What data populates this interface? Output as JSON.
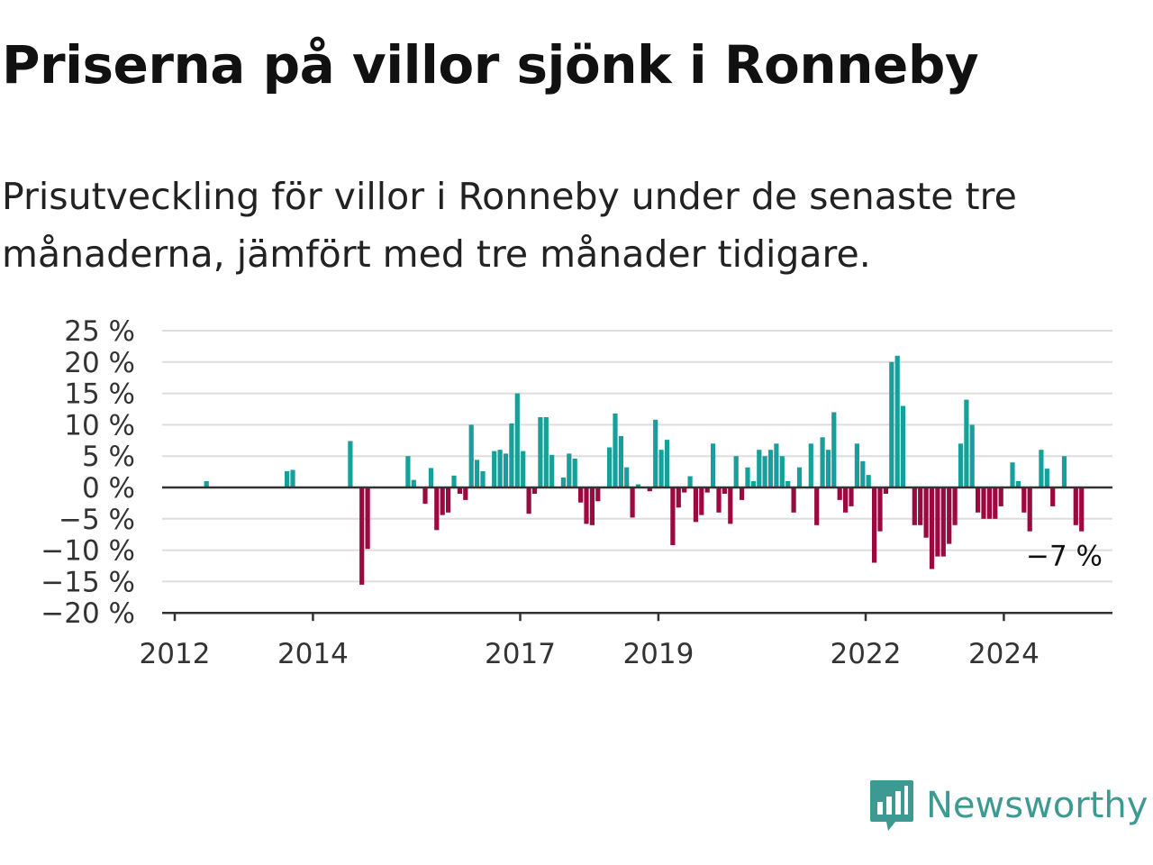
{
  "title": "Priserna på villor sjönk i Ronneby",
  "subtitle": "Prisutveckling för villor i Ronneby under de senaste tre månaderna, jämfört med tre månader tidigare.",
  "brand": {
    "name": "Newsworthy"
  },
  "colors": {
    "positive": "#17a09b",
    "negative": "#9b0940",
    "grid": "#dddddd",
    "axis": "#333333",
    "text": "#333333",
    "brand": "#3d9a93"
  },
  "chart_data": {
    "type": "bar",
    "title": "",
    "xlabel": "",
    "ylabel": "",
    "ylim": [
      -20,
      25
    ],
    "yticks": [
      25,
      20,
      15,
      10,
      5,
      0,
      -5,
      -10,
      -15,
      -20
    ],
    "y_tick_labels": [
      "25 %",
      "20 %",
      "15 %",
      "10 %",
      "5 %",
      "0 %",
      "−5 %",
      "−10 %",
      "−15 %",
      "−20 %"
    ],
    "x_tick_labels": [
      {
        "year": 2012,
        "label": "2012"
      },
      {
        "year": 2014,
        "label": "2014"
      },
      {
        "year": 2017,
        "label": "2017"
      },
      {
        "year": 2019,
        "label": "2019"
      },
      {
        "year": 2022,
        "label": "2022"
      },
      {
        "year": 2024,
        "label": "2024"
      }
    ],
    "annotation": {
      "date": "2025-02",
      "value": -7,
      "text": "−7 %"
    },
    "series": [
      {
        "values": [
          {
            "date": "2012-06",
            "value": 1
          },
          {
            "date": "2013-08",
            "value": 2.6
          },
          {
            "date": "2013-09",
            "value": 2.8
          },
          {
            "date": "2014-07",
            "value": 7.4
          },
          {
            "date": "2014-09",
            "value": -15.5
          },
          {
            "date": "2014-10",
            "value": -9.8
          },
          {
            "date": "2015-05",
            "value": 5
          },
          {
            "date": "2015-06",
            "value": 1.2
          },
          {
            "date": "2015-08",
            "value": -2.6
          },
          {
            "date": "2015-09",
            "value": 3.1
          },
          {
            "date": "2015-10",
            "value": -6.8
          },
          {
            "date": "2015-11",
            "value": -4.4
          },
          {
            "date": "2015-12",
            "value": -4
          },
          {
            "date": "2016-01",
            "value": 1.9
          },
          {
            "date": "2016-02",
            "value": -1
          },
          {
            "date": "2016-03",
            "value": -2
          },
          {
            "date": "2016-04",
            "value": 10
          },
          {
            "date": "2016-05",
            "value": 4.4
          },
          {
            "date": "2016-06",
            "value": 2.6
          },
          {
            "date": "2016-08",
            "value": 5.8
          },
          {
            "date": "2016-09",
            "value": 6
          },
          {
            "date": "2016-10",
            "value": 5.4
          },
          {
            "date": "2016-11",
            "value": 10.2
          },
          {
            "date": "2016-12",
            "value": 15
          },
          {
            "date": "2017-01",
            "value": 5.8
          },
          {
            "date": "2017-02",
            "value": -4.2
          },
          {
            "date": "2017-03",
            "value": -1
          },
          {
            "date": "2017-04",
            "value": 11.2
          },
          {
            "date": "2017-05",
            "value": 11.2
          },
          {
            "date": "2017-06",
            "value": 5.2
          },
          {
            "date": "2017-08",
            "value": 1.6
          },
          {
            "date": "2017-09",
            "value": 5.4
          },
          {
            "date": "2017-10",
            "value": 4.6
          },
          {
            "date": "2017-11",
            "value": -2.4
          },
          {
            "date": "2017-12",
            "value": -5.8
          },
          {
            "date": "2018-01",
            "value": -6
          },
          {
            "date": "2018-02",
            "value": -2.2
          },
          {
            "date": "2018-04",
            "value": 6.4
          },
          {
            "date": "2018-05",
            "value": 11.8
          },
          {
            "date": "2018-06",
            "value": 8.2
          },
          {
            "date": "2018-07",
            "value": 3.2
          },
          {
            "date": "2018-08",
            "value": -4.8
          },
          {
            "date": "2018-09",
            "value": 0.5
          },
          {
            "date": "2018-11",
            "value": -0.6
          },
          {
            "date": "2018-12",
            "value": 10.8
          },
          {
            "date": "2019-01",
            "value": 6
          },
          {
            "date": "2019-02",
            "value": 7.6
          },
          {
            "date": "2019-03",
            "value": -9.2
          },
          {
            "date": "2019-04",
            "value": -3.2
          },
          {
            "date": "2019-05",
            "value": -0.8
          },
          {
            "date": "2019-06",
            "value": 1.8
          },
          {
            "date": "2019-07",
            "value": -5.5
          },
          {
            "date": "2019-08",
            "value": -4.4
          },
          {
            "date": "2019-09",
            "value": -0.8
          },
          {
            "date": "2019-10",
            "value": 7
          },
          {
            "date": "2019-11",
            "value": -4
          },
          {
            "date": "2019-12",
            "value": -1
          },
          {
            "date": "2020-01",
            "value": -5.8
          },
          {
            "date": "2020-02",
            "value": 5
          },
          {
            "date": "2020-03",
            "value": -2
          },
          {
            "date": "2020-04",
            "value": 3.2
          },
          {
            "date": "2020-05",
            "value": 1
          },
          {
            "date": "2020-06",
            "value": 6
          },
          {
            "date": "2020-07",
            "value": 5
          },
          {
            "date": "2020-08",
            "value": 6
          },
          {
            "date": "2020-09",
            "value": 7
          },
          {
            "date": "2020-10",
            "value": 5
          },
          {
            "date": "2020-11",
            "value": 1
          },
          {
            "date": "2020-12",
            "value": -4
          },
          {
            "date": "2021-01",
            "value": 3.2
          },
          {
            "date": "2021-03",
            "value": 7
          },
          {
            "date": "2021-04",
            "value": -6
          },
          {
            "date": "2021-05",
            "value": 8
          },
          {
            "date": "2021-06",
            "value": 6
          },
          {
            "date": "2021-07",
            "value": 12
          },
          {
            "date": "2021-08",
            "value": -2
          },
          {
            "date": "2021-09",
            "value": -4
          },
          {
            "date": "2021-10",
            "value": -3
          },
          {
            "date": "2021-11",
            "value": 7
          },
          {
            "date": "2021-12",
            "value": 4.2
          },
          {
            "date": "2022-01",
            "value": 2
          },
          {
            "date": "2022-02",
            "value": -12
          },
          {
            "date": "2022-03",
            "value": -7
          },
          {
            "date": "2022-04",
            "value": -1
          },
          {
            "date": "2022-05",
            "value": 20
          },
          {
            "date": "2022-06",
            "value": 21
          },
          {
            "date": "2022-07",
            "value": 13
          },
          {
            "date": "2022-09",
            "value": -6
          },
          {
            "date": "2022-10",
            "value": -6
          },
          {
            "date": "2022-11",
            "value": -8
          },
          {
            "date": "2022-12",
            "value": -13
          },
          {
            "date": "2023-01",
            "value": -11
          },
          {
            "date": "2023-02",
            "value": -11
          },
          {
            "date": "2023-03",
            "value": -9
          },
          {
            "date": "2023-04",
            "value": -6
          },
          {
            "date": "2023-05",
            "value": 7
          },
          {
            "date": "2023-06",
            "value": 14
          },
          {
            "date": "2023-07",
            "value": 10
          },
          {
            "date": "2023-08",
            "value": -4
          },
          {
            "date": "2023-09",
            "value": -5
          },
          {
            "date": "2023-10",
            "value": -5
          },
          {
            "date": "2023-11",
            "value": -5
          },
          {
            "date": "2023-12",
            "value": -3
          },
          {
            "date": "2024-02",
            "value": 4
          },
          {
            "date": "2024-03",
            "value": 1
          },
          {
            "date": "2024-04",
            "value": -4
          },
          {
            "date": "2024-05",
            "value": -7
          },
          {
            "date": "2024-07",
            "value": 6
          },
          {
            "date": "2024-08",
            "value": 3
          },
          {
            "date": "2024-09",
            "value": -3
          },
          {
            "date": "2024-11",
            "value": 5
          },
          {
            "date": "2025-01",
            "value": -6
          },
          {
            "date": "2025-02",
            "value": -7
          }
        ]
      }
    ]
  }
}
